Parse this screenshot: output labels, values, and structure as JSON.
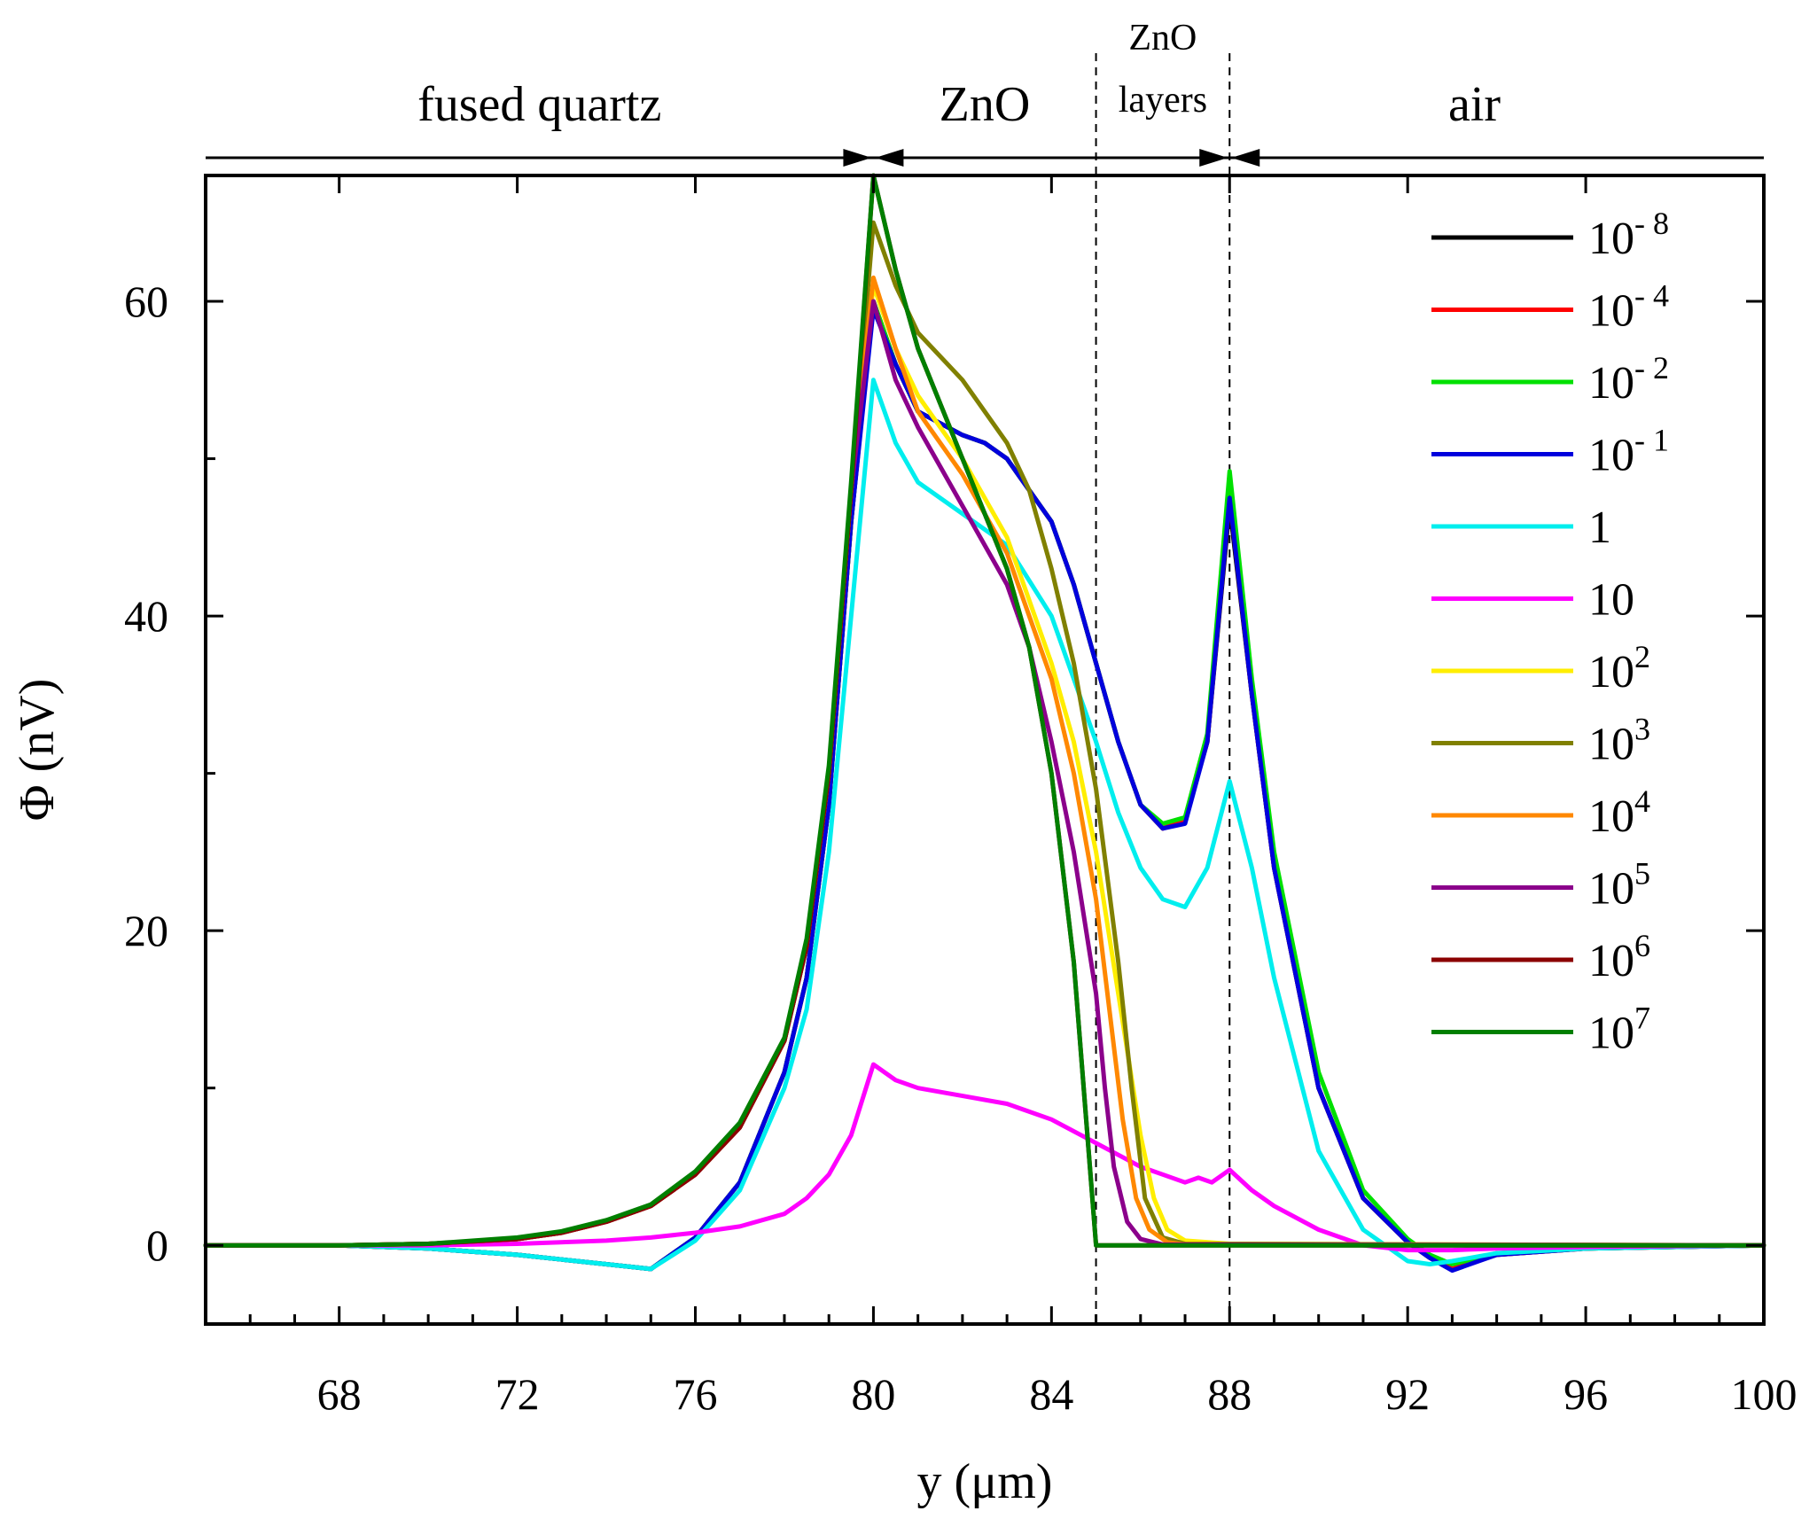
{
  "chart_data": {
    "type": "line",
    "xlabel": "y (μm)",
    "ylabel": "Φ (nV)",
    "xlim": [
      65,
      100
    ],
    "ylim": [
      -5,
      68
    ],
    "xticks": [
      {
        "value": 68,
        "label": "68"
      },
      {
        "value": 72,
        "label": "72"
      },
      {
        "value": 76,
        "label": "76"
      },
      {
        "value": 80,
        "label": "80"
      },
      {
        "value": 84,
        "label": "84"
      },
      {
        "value": 88,
        "label": "88"
      },
      {
        "value": 92,
        "label": "92"
      },
      {
        "value": 96,
        "label": "96"
      },
      {
        "value": 100,
        "label": "100"
      }
    ],
    "yticks": [
      {
        "value": 0,
        "label": "0"
      },
      {
        "value": 20,
        "label": "20"
      },
      {
        "value": 40,
        "label": "40"
      },
      {
        "value": 60,
        "label": "60"
      }
    ],
    "regions": [
      {
        "label": "fused quartz",
        "x": 72.5
      },
      {
        "label": "ZnO",
        "x": 82.5
      },
      {
        "label": "ZnO",
        "label2": "layers",
        "x": 86.5
      },
      {
        "label": "air",
        "x": 93.5
      }
    ],
    "boundaries": [
      85,
      88
    ],
    "region_arrows": [
      80,
      88
    ],
    "legend": {
      "position": "top-right"
    },
    "series": [
      {
        "name": "10^-8",
        "base": "10",
        "exp": "- 8",
        "color": "#000000",
        "x": [
          65,
          68,
          70,
          72,
          73,
          74,
          75,
          76,
          77,
          78,
          78.5,
          79,
          79.5,
          80,
          80.5,
          81,
          82,
          82.5,
          83,
          84,
          84.5,
          85,
          85.5,
          86,
          86.5,
          87,
          87.5,
          88,
          88.5,
          89,
          90,
          91,
          92,
          92.5,
          93,
          94,
          96,
          100
        ],
        "y": [
          0,
          0,
          -0.2,
          -0.6,
          -0.9,
          -1.2,
          -1.5,
          0.5,
          4,
          11,
          17,
          28,
          46,
          60,
          56,
          53,
          51.5,
          51,
          50,
          46,
          42,
          37,
          32,
          28,
          26.5,
          27,
          32,
          47,
          35,
          24,
          10,
          3,
          0.2,
          -0.8,
          -1.5,
          -0.6,
          -0.2,
          0
        ]
      },
      {
        "name": "10^-4",
        "base": "10",
        "exp": "- 4",
        "color": "#ff0000",
        "x": [
          65,
          68,
          70,
          72,
          73,
          74,
          75,
          76,
          77,
          78,
          78.5,
          79,
          79.5,
          80,
          80.5,
          81,
          82,
          82.5,
          83,
          84,
          84.5,
          85,
          85.5,
          86,
          86.5,
          87,
          87.5,
          88,
          88.5,
          89,
          90,
          91,
          92,
          92.5,
          93,
          94,
          96,
          100
        ],
        "y": [
          0,
          0,
          -0.2,
          -0.6,
          -0.9,
          -1.2,
          -1.5,
          0.5,
          4,
          11,
          17,
          28,
          46,
          60,
          56,
          53,
          51.5,
          51,
          50,
          46,
          42,
          37,
          32,
          28,
          26.5,
          27,
          32,
          47.5,
          35,
          24,
          10,
          3,
          0.2,
          -0.8,
          -1.5,
          -0.6,
          -0.2,
          0
        ]
      },
      {
        "name": "10^-2",
        "base": "10",
        "exp": "- 2",
        "color": "#00e000",
        "x": [
          65,
          68,
          70,
          72,
          73,
          74,
          75,
          76,
          77,
          78,
          78.5,
          79,
          79.5,
          80,
          80.5,
          81,
          82,
          82.5,
          83,
          84,
          84.5,
          85,
          85.5,
          86,
          86.5,
          87,
          87.5,
          88,
          88.5,
          89,
          90,
          91,
          92,
          92.5,
          93,
          94,
          96,
          100
        ],
        "y": [
          0,
          0,
          -0.2,
          -0.6,
          -0.9,
          -1.2,
          -1.5,
          0.5,
          4,
          11,
          17,
          28,
          46,
          60,
          56,
          53,
          51.5,
          51,
          50,
          46,
          42,
          37,
          32,
          28,
          26.8,
          27.2,
          32.5,
          49.2,
          36,
          25,
          11,
          3.5,
          0.4,
          -0.6,
          -1.2,
          -0.5,
          -0.2,
          0
        ]
      },
      {
        "name": "10^-1",
        "base": "10",
        "exp": "- 1",
        "color": "#0000dd",
        "x": [
          65,
          68,
          70,
          72,
          73,
          74,
          75,
          76,
          77,
          78,
          78.5,
          79,
          79.5,
          80,
          80.5,
          81,
          82,
          82.5,
          83,
          84,
          84.5,
          85,
          85.5,
          86,
          86.5,
          87,
          87.5,
          88,
          88.5,
          89,
          90,
          91,
          92,
          92.5,
          93,
          94,
          96,
          100
        ],
        "y": [
          0,
          0,
          -0.2,
          -0.6,
          -0.9,
          -1.2,
          -1.5,
          0.5,
          4,
          11,
          17,
          28,
          46,
          59.5,
          56,
          53,
          51.5,
          51,
          50,
          46,
          42,
          37,
          32,
          28,
          26.5,
          26.8,
          32,
          47.5,
          35,
          24,
          10,
          3,
          0.2,
          -0.8,
          -1.6,
          -0.6,
          -0.2,
          0
        ]
      },
      {
        "name": "1",
        "base": "1",
        "exp": "",
        "color": "#00eeee",
        "x": [
          65,
          68,
          70,
          72,
          73,
          74,
          75,
          76,
          77,
          78,
          78.5,
          79,
          79.5,
          80,
          80.5,
          81,
          82,
          83,
          84,
          84.5,
          85,
          85.5,
          86,
          86.5,
          87,
          87.5,
          88,
          88.5,
          89,
          90,
          91,
          92,
          92.5,
          93,
          94,
          96,
          100
        ],
        "y": [
          0,
          0,
          -0.2,
          -0.6,
          -0.9,
          -1.2,
          -1.5,
          0.3,
          3.5,
          10,
          15,
          25,
          40,
          55,
          51,
          48.5,
          46.5,
          44.5,
          40,
          36,
          32,
          27.5,
          24,
          22,
          21.5,
          24,
          29.5,
          24,
          17,
          6,
          1,
          -1,
          -1.2,
          -1,
          -0.5,
          -0.2,
          0
        ]
      },
      {
        "name": "10",
        "base": "10",
        "exp": "",
        "color": "#ff00ff",
        "x": [
          65,
          70,
          72,
          74,
          75,
          76,
          77,
          78,
          78.5,
          79,
          79.5,
          80,
          80.5,
          81,
          82,
          83,
          84,
          85,
          86,
          86.5,
          87,
          87.3,
          87.6,
          88,
          88.5,
          89,
          90,
          91,
          92,
          93,
          94,
          96,
          100
        ],
        "y": [
          0,
          0,
          0.1,
          0.3,
          0.5,
          0.8,
          1.2,
          2,
          3,
          4.5,
          7,
          11.5,
          10.5,
          10,
          9.5,
          9,
          8,
          6.5,
          5,
          4.5,
          4,
          4.3,
          4,
          4.8,
          3.5,
          2.5,
          1,
          0,
          -0.3,
          -0.3,
          -0.2,
          -0.1,
          0
        ]
      },
      {
        "name": "10^2",
        "base": "10",
        "exp": "2",
        "color": "#ffee00",
        "x": [
          65,
          68,
          70,
          72,
          73,
          74,
          75,
          76,
          77,
          78,
          78.5,
          79,
          79.5,
          80,
          80.5,
          81,
          82,
          83,
          84,
          84.5,
          85,
          85.5,
          86,
          86.3,
          86.6,
          87,
          88,
          100
        ],
        "y": [
          0,
          0,
          0.1,
          0.4,
          0.8,
          1.5,
          2.5,
          4.5,
          7.5,
          13,
          19,
          30,
          48,
          61,
          57,
          54,
          50,
          45,
          37,
          32,
          25,
          16,
          7,
          3,
          1,
          0.3,
          0.1,
          0
        ]
      },
      {
        "name": "10^3",
        "base": "10",
        "exp": "3",
        "color": "#808000",
        "x": [
          65,
          68,
          70,
          72,
          73,
          74,
          75,
          76,
          77,
          78,
          78.5,
          79,
          79.5,
          80,
          80.5,
          81,
          82,
          83,
          83.5,
          84,
          84.5,
          85,
          85.5,
          85.8,
          86.1,
          86.5,
          87,
          100
        ],
        "y": [
          0,
          0,
          0.1,
          0.4,
          0.8,
          1.5,
          2.5,
          4.5,
          7.5,
          13,
          19,
          30,
          48,
          65,
          61,
          58,
          55,
          51,
          48,
          43,
          37,
          29,
          18,
          10,
          3,
          0.5,
          0.1,
          0
        ]
      },
      {
        "name": "10^4",
        "base": "10",
        "exp": "4",
        "color": "#ff8800",
        "x": [
          65,
          68,
          70,
          72,
          73,
          74,
          75,
          76,
          77,
          78,
          78.5,
          79,
          79.5,
          80,
          80.5,
          81,
          82,
          83,
          84,
          84.5,
          85,
          85.3,
          85.6,
          85.9,
          86.2,
          86.6,
          87,
          100
        ],
        "y": [
          0,
          0,
          0.1,
          0.4,
          0.8,
          1.5,
          2.5,
          4.5,
          7.5,
          13,
          19,
          30,
          48,
          61.5,
          57,
          53,
          49,
          44,
          36,
          30,
          22,
          15,
          8,
          3,
          1,
          0.2,
          0.05,
          0
        ]
      },
      {
        "name": "10^5",
        "base": "10",
        "exp": "5",
        "color": "#8b008b",
        "x": [
          65,
          68,
          70,
          72,
          73,
          74,
          75,
          76,
          77,
          78,
          78.5,
          79,
          79.5,
          80,
          80.5,
          81,
          82,
          83,
          83.5,
          84,
          84.5,
          85,
          85.2,
          85.4,
          85.7,
          86,
          86.5,
          100
        ],
        "y": [
          0,
          0,
          0.1,
          0.4,
          0.8,
          1.5,
          2.5,
          4.5,
          7.5,
          13,
          19,
          30,
          48,
          60,
          55,
          52,
          47,
          42,
          38,
          32,
          25,
          16,
          10,
          5,
          1.5,
          0.4,
          0.05,
          0
        ]
      },
      {
        "name": "10^6",
        "base": "10",
        "exp": "6",
        "color": "#8b0000",
        "x": [
          65,
          68,
          70,
          72,
          73,
          74,
          75,
          76,
          77,
          78,
          78.5,
          79,
          79.5,
          80,
          80.5,
          81,
          82,
          83,
          83.5,
          84,
          84.5,
          85,
          100
        ],
        "y": [
          0,
          0,
          0.1,
          0.4,
          0.8,
          1.5,
          2.5,
          4.5,
          7.5,
          13,
          19,
          30,
          48,
          68,
          62,
          57,
          50,
          43,
          38,
          30,
          18,
          0,
          0
        ]
      },
      {
        "name": "10^7",
        "base": "10",
        "exp": "7",
        "color": "#007f00",
        "x": [
          65,
          68,
          70,
          72,
          73,
          74,
          75,
          76,
          77,
          78,
          78.5,
          79,
          79.5,
          80,
          80.5,
          81,
          82,
          83,
          83.5,
          84,
          84.5,
          85,
          100
        ],
        "y": [
          0,
          0,
          0.1,
          0.5,
          0.9,
          1.6,
          2.6,
          4.7,
          7.8,
          13.2,
          19.5,
          30.5,
          48.5,
          68,
          62,
          57,
          50,
          43,
          38,
          30,
          18,
          0,
          0
        ]
      }
    ]
  }
}
